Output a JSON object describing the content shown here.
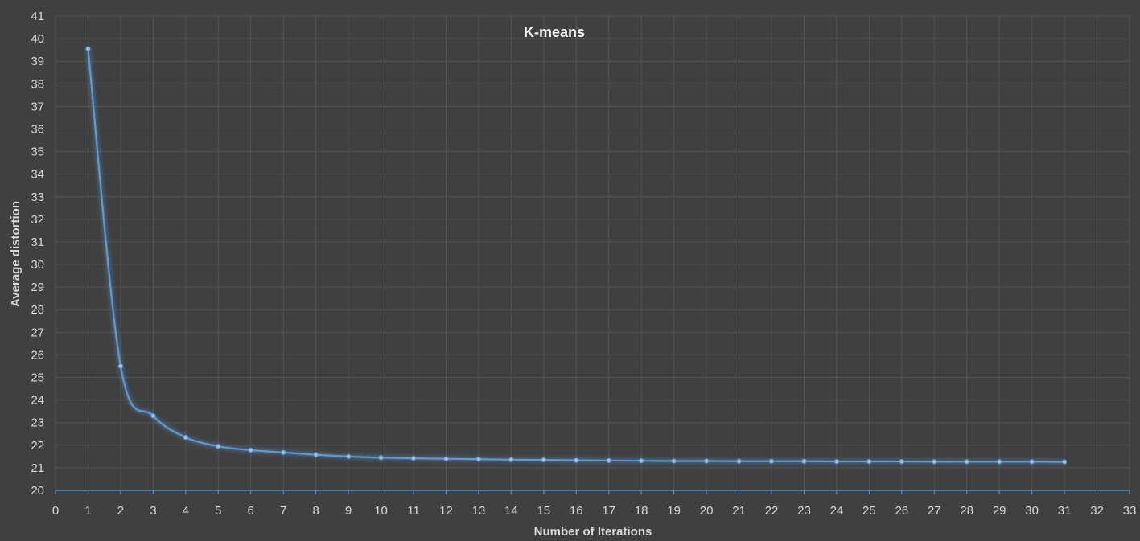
{
  "chart_data": {
    "type": "line",
    "title": "K-means",
    "xlabel": "Number of Iterations",
    "ylabel": "Average distortion",
    "xlim": [
      0,
      33
    ],
    "ylim": [
      20,
      41
    ],
    "xticks": [
      0,
      1,
      2,
      3,
      4,
      5,
      6,
      7,
      8,
      9,
      10,
      11,
      12,
      13,
      14,
      15,
      16,
      17,
      18,
      19,
      20,
      21,
      22,
      23,
      24,
      25,
      26,
      27,
      28,
      29,
      30,
      31,
      32,
      33
    ],
    "yticks": [
      20,
      21,
      22,
      23,
      24,
      25,
      26,
      27,
      28,
      29,
      30,
      31,
      32,
      33,
      34,
      35,
      36,
      37,
      38,
      39,
      40,
      41
    ],
    "grid": true,
    "smooth": true,
    "series": [
      {
        "color": "#5b9bd5",
        "x": [
          1,
          2,
          3,
          4,
          5,
          6,
          7,
          8,
          9,
          10,
          11,
          12,
          13,
          14,
          15,
          16,
          17,
          18,
          19,
          20,
          21,
          22,
          23,
          24,
          25,
          26,
          27,
          28,
          29,
          30,
          31
        ],
        "y": [
          39.55,
          25.5,
          23.3,
          22.35,
          21.95,
          21.78,
          21.68,
          21.58,
          21.5,
          21.45,
          21.42,
          21.4,
          21.38,
          21.36,
          21.35,
          21.33,
          21.32,
          21.31,
          21.3,
          21.3,
          21.29,
          21.29,
          21.29,
          21.28,
          21.28,
          21.28,
          21.27,
          21.27,
          21.27,
          21.27,
          21.26
        ]
      }
    ]
  }
}
